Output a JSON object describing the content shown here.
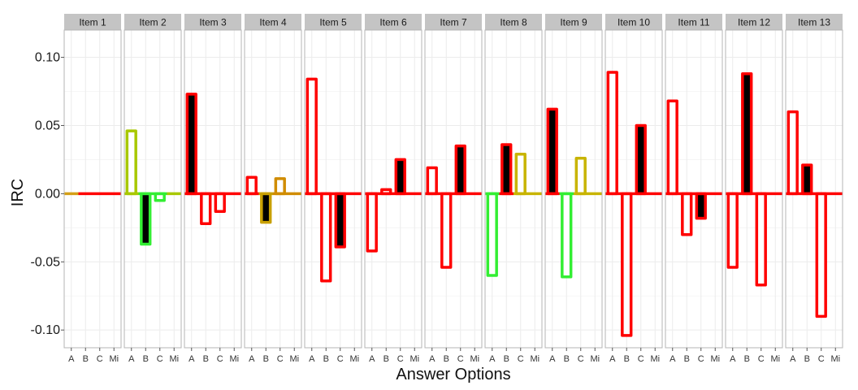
{
  "chart_data": {
    "type": "bar",
    "facet_type": "small-multiples",
    "xlabel": "Answer Options",
    "ylabel": "IRC",
    "ylim": [
      -0.113,
      0.12
    ],
    "yticks": [
      -0.1,
      -0.05,
      0.0,
      0.05,
      0.1
    ],
    "ytick_labels": [
      "-0.10",
      "-0.05",
      "0.00",
      "0.05",
      "0.10"
    ],
    "categories": [
      "A",
      "B",
      "C",
      "Mi"
    ],
    "grid": true,
    "legend": "none",
    "colors": {
      "key_fill": "#000000",
      "distractor_fill": "#ffffff",
      "strip_bg": "#c4c4c4",
      "panel_border": "#b5b5b5",
      "grid": "#ececec"
    },
    "facets": [
      {
        "label": "Item 1",
        "key": null,
        "values": [
          0.0,
          0.0,
          0.0,
          0.0
        ],
        "colors": [
          "#d4a017",
          "#ff0000",
          "#ff0000",
          "#ff0000"
        ]
      },
      {
        "label": "Item 2",
        "key": 1,
        "values": [
          0.046,
          -0.037,
          -0.005,
          0.0
        ],
        "colors": [
          "#a8c800",
          "#33ee33",
          "#33ee33",
          "#a8c800"
        ]
      },
      {
        "label": "Item 3",
        "key": 0,
        "values": [
          0.073,
          -0.022,
          -0.013,
          0.0
        ],
        "colors": [
          "#ff0000",
          "#ff0000",
          "#ff0000",
          "#ff0000"
        ]
      },
      {
        "label": "Item 4",
        "key": 1,
        "values": [
          0.012,
          -0.021,
          0.011,
          0.0
        ],
        "colors": [
          "#ff0000",
          "#c8a000",
          "#d08c00",
          "#d08c00"
        ]
      },
      {
        "label": "Item 5",
        "key": 2,
        "values": [
          0.084,
          -0.064,
          -0.039,
          0.0
        ],
        "colors": [
          "#ff0000",
          "#ff0000",
          "#ff0000",
          "#ff0000"
        ]
      },
      {
        "label": "Item 6",
        "key": 2,
        "values": [
          -0.042,
          0.003,
          0.025,
          0.0
        ],
        "colors": [
          "#ff0000",
          "#ff0000",
          "#ff0000",
          "#ff0000"
        ]
      },
      {
        "label": "Item 7",
        "key": 2,
        "values": [
          0.019,
          -0.054,
          0.035,
          0.0
        ],
        "colors": [
          "#ff0000",
          "#ff0000",
          "#ff0000",
          "#ff0000"
        ]
      },
      {
        "label": "Item 8",
        "key": 1,
        "values": [
          -0.06,
          0.036,
          0.029,
          0.0
        ],
        "colors": [
          "#33ee33",
          "#ff0000",
          "#c8b400",
          "#c8b400"
        ]
      },
      {
        "label": "Item 9",
        "key": 0,
        "values": [
          0.062,
          -0.061,
          0.026,
          0.0
        ],
        "colors": [
          "#ff0000",
          "#33ee33",
          "#c8b400",
          "#c8b400"
        ]
      },
      {
        "label": "Item 10",
        "key": 2,
        "values": [
          0.089,
          -0.104,
          0.05,
          0.0
        ],
        "colors": [
          "#ff0000",
          "#ff0000",
          "#ff0000",
          "#ff0000"
        ]
      },
      {
        "label": "Item 11",
        "key": 2,
        "values": [
          0.068,
          -0.03,
          -0.018,
          0.0
        ],
        "colors": [
          "#ff0000",
          "#ff0000",
          "#ff0000",
          "#ff0000"
        ]
      },
      {
        "label": "Item 12",
        "key": 1,
        "values": [
          -0.054,
          0.088,
          -0.067,
          0.0
        ],
        "colors": [
          "#ff0000",
          "#ff0000",
          "#ff0000",
          "#ff0000"
        ]
      },
      {
        "label": "Item 13",
        "key": 1,
        "values": [
          0.06,
          0.021,
          -0.09,
          0.0
        ],
        "colors": [
          "#ff0000",
          "#ff0000",
          "#ff0000",
          "#ff0000"
        ]
      }
    ]
  }
}
